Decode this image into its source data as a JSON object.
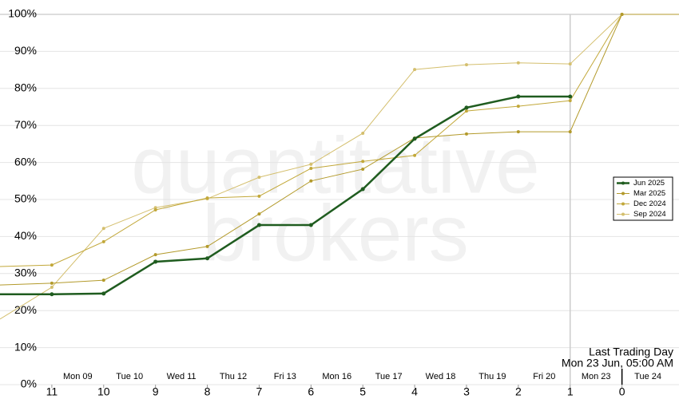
{
  "chart_data": {
    "type": "line",
    "watermark": [
      "quantitative",
      "brokers"
    ],
    "x": [
      12,
      11,
      10,
      9,
      8,
      7,
      6,
      5,
      4,
      3,
      2,
      1,
      0,
      -1.1
    ],
    "xlim": [
      12,
      -1.1
    ],
    "xticks": [
      11,
      10,
      9,
      8,
      7,
      6,
      5,
      4,
      3,
      2,
      1,
      0
    ],
    "day_labels": [
      "Mon 09",
      "Tue 10",
      "Wed 11",
      "Thu 12",
      "Fri 13",
      "Mon 16",
      "Tue 17",
      "Wed 18",
      "Thu 19",
      "Fri 20",
      "Mon 23",
      "Tue 24"
    ],
    "ylim": [
      0,
      100
    ],
    "yticks": [
      {
        "value": 0,
        "label": "0%"
      },
      {
        "value": 10,
        "label": "10%"
      },
      {
        "value": 20,
        "label": "20%"
      },
      {
        "value": 30,
        "label": "30%"
      },
      {
        "value": 40,
        "label": "40%"
      },
      {
        "value": 50,
        "label": "50%"
      },
      {
        "value": 60,
        "label": "60%"
      },
      {
        "value": 70,
        "label": "70%"
      },
      {
        "value": 80,
        "label": "80%"
      },
      {
        "value": 90,
        "label": "90%"
      },
      {
        "value": 100,
        "label": "100%"
      }
    ],
    "grid": true,
    "legend": "right",
    "annotation": {
      "x": 1,
      "lines": [
        "Last Trading Day",
        "Mon 23 Jun, 05:00 AM"
      ]
    },
    "series": [
      {
        "name": "Jun 2025",
        "color": "#1f5c1f",
        "values": [
          24.4,
          24.4,
          24.6,
          33.2,
          34.1,
          43.1,
          43.1,
          52.8,
          66.4,
          74.8,
          77.8,
          77.8,
          null,
          null
        ]
      },
      {
        "name": "Mar 2025",
        "color": "#b39a2b",
        "values": [
          26.9,
          27.4,
          28.2,
          35.1,
          37.3,
          46.1,
          55.0,
          58.2,
          66.6,
          67.7,
          68.3,
          68.3,
          100,
          100
        ]
      },
      {
        "name": "Dec 2024",
        "color": "#c2a83a",
        "values": [
          31.9,
          32.3,
          38.6,
          47.2,
          50.4,
          50.9,
          58.4,
          60.3,
          61.9,
          73.9,
          75.2,
          76.7,
          100,
          100
        ]
      },
      {
        "name": "Sep 2024",
        "color": "#d4bf6e",
        "values": [
          17.7,
          26.3,
          42.2,
          47.8,
          50.2,
          56.0,
          59.5,
          67.9,
          85.1,
          86.4,
          86.9,
          86.6,
          100,
          100
        ]
      }
    ]
  }
}
